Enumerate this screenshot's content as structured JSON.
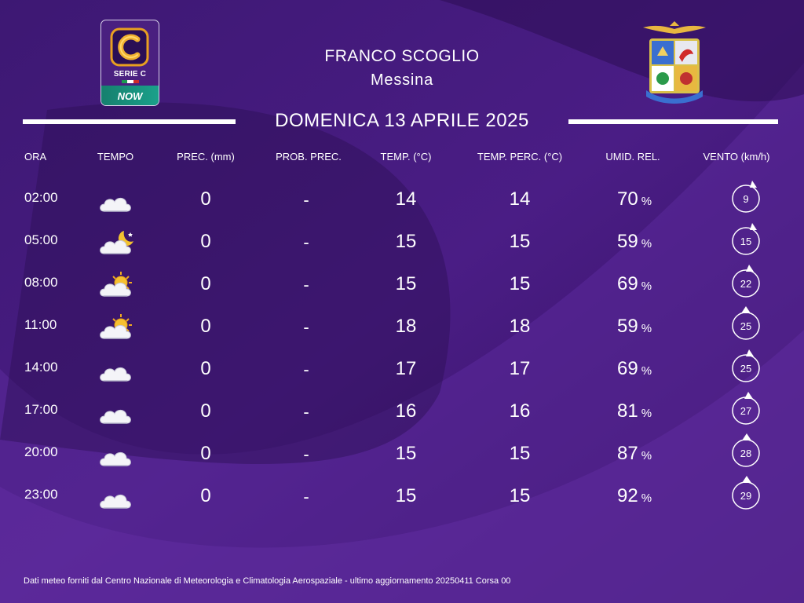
{
  "header": {
    "stadium": "FRANCO SCOGLIO",
    "city": "Messina",
    "date": "DOMENICA 13 APRILE 2025"
  },
  "logos": {
    "league_name": "SERIE C",
    "sponsor": "NOW",
    "right_emblem": "aeronautica-militare-emblem"
  },
  "columns": {
    "time": "ORA",
    "weather": "TEMPO",
    "precip": "PREC. (mm)",
    "precip_prob": "PROB. PREC.",
    "temp": "TEMP. (°C)",
    "temp_perc": "TEMP. PERC. (°C)",
    "humidity": "UMID. REL.",
    "wind": "VENTO (km/h)"
  },
  "rows": [
    {
      "time": "02:00",
      "icon": "cloudy-icon",
      "precip": "0",
      "prob": "-",
      "temp": "14",
      "perc": "14",
      "hum": "70",
      "hum_unit": "%",
      "wind": "9"
    },
    {
      "time": "05:00",
      "icon": "cloudy-night-icon",
      "precip": "0",
      "prob": "-",
      "temp": "15",
      "perc": "15",
      "hum": "59",
      "hum_unit": "%",
      "wind": "15"
    },
    {
      "time": "08:00",
      "icon": "partly-sunny-icon",
      "precip": "0",
      "prob": "-",
      "temp": "15",
      "perc": "15",
      "hum": "69",
      "hum_unit": "%",
      "wind": "22"
    },
    {
      "time": "11:00",
      "icon": "partly-sunny-icon",
      "precip": "0",
      "prob": "-",
      "temp": "18",
      "perc": "18",
      "hum": "59",
      "hum_unit": "%",
      "wind": "25"
    },
    {
      "time": "14:00",
      "icon": "cloudy-icon",
      "precip": "0",
      "prob": "-",
      "temp": "17",
      "perc": "17",
      "hum": "69",
      "hum_unit": "%",
      "wind": "25"
    },
    {
      "time": "17:00",
      "icon": "cloudy-icon",
      "precip": "0",
      "prob": "-",
      "temp": "16",
      "perc": "16",
      "hum": "81",
      "hum_unit": "%",
      "wind": "27"
    },
    {
      "time": "20:00",
      "icon": "cloudy-icon",
      "precip": "0",
      "prob": "-",
      "temp": "15",
      "perc": "15",
      "hum": "87",
      "hum_unit": "%",
      "wind": "28"
    },
    {
      "time": "23:00",
      "icon": "cloudy-icon",
      "precip": "0",
      "prob": "-",
      "temp": "15",
      "perc": "15",
      "hum": "92",
      "hum_unit": "%",
      "wind": "29"
    }
  ],
  "footer": "Dati meteo forniti dal Centro Nazionale di Meteorologia e Climatologia Aerospaziale - ultimo aggiornamento 20250411 Corsa 00",
  "colors": {
    "background": "#3a1670",
    "accent_gold": "#e8a020",
    "text": "#ffffff"
  }
}
